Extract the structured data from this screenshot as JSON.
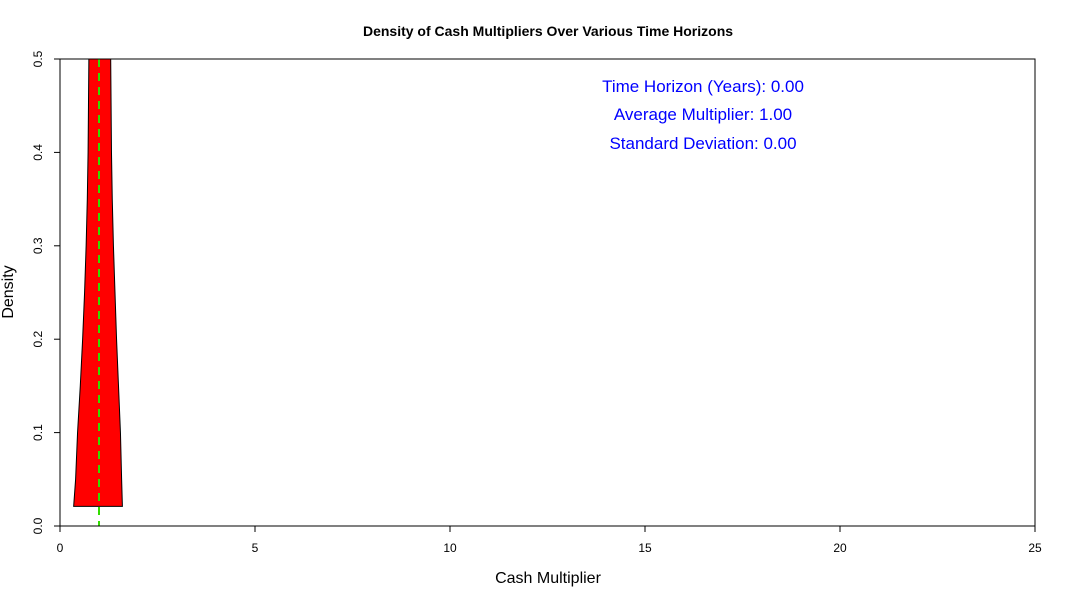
{
  "chart_data": {
    "type": "area",
    "title": "Density of Cash Multipliers Over Various Time Horizons",
    "xlabel": "Cash Multiplier",
    "ylabel": "Density",
    "xlim": [
      0,
      25
    ],
    "ylim": [
      0,
      0.5
    ],
    "xticks": [
      "0",
      "5",
      "10",
      "15",
      "20",
      "25"
    ],
    "yticks": [
      "0.0",
      "0.1",
      "0.2",
      "0.3",
      "0.4",
      "0.5"
    ],
    "grid": false,
    "density_curve": {
      "fill_color": "#ff0000",
      "outline_color": "#000000",
      "points": [
        [
          0.35,
          0.021
        ],
        [
          0.4,
          0.05
        ],
        [
          0.45,
          0.1
        ],
        [
          0.52,
          0.15
        ],
        [
          0.58,
          0.2
        ],
        [
          0.63,
          0.25
        ],
        [
          0.67,
          0.3
        ],
        [
          0.7,
          0.35
        ],
        [
          0.72,
          0.4
        ],
        [
          0.73,
          0.45
        ],
        [
          0.74,
          0.5
        ],
        [
          1.3,
          0.5
        ],
        [
          1.31,
          0.45
        ],
        [
          1.32,
          0.4
        ],
        [
          1.34,
          0.35
        ],
        [
          1.37,
          0.3
        ],
        [
          1.41,
          0.25
        ],
        [
          1.45,
          0.2
        ],
        [
          1.5,
          0.15
        ],
        [
          1.55,
          0.1
        ],
        [
          1.58,
          0.05
        ],
        [
          1.6,
          0.021
        ]
      ]
    },
    "mean_line": {
      "x": 1.0,
      "color": "#33dd00",
      "style": "dashed"
    },
    "annotations": {
      "color": "#0000ff",
      "lines": [
        "Time Horizon (Years): 0.00",
        "Average Multiplier: 1.00",
        "Standard Deviation: 0.00"
      ]
    }
  }
}
